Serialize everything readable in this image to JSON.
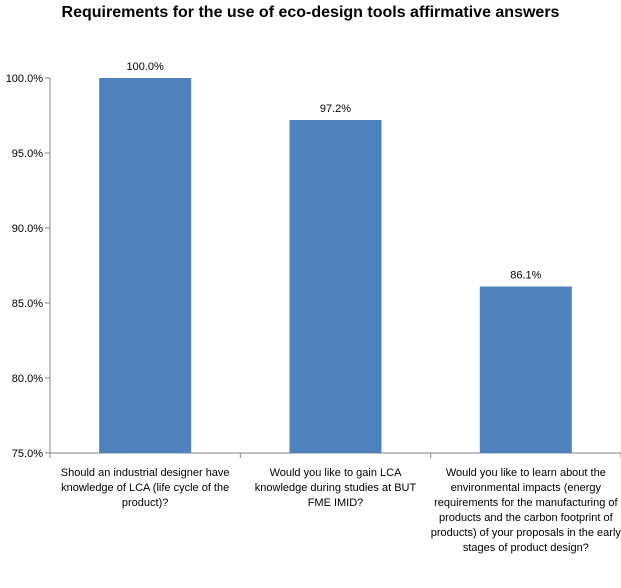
{
  "chart_data": {
    "type": "bar",
    "title": "Requirements for the use of eco-design tools affirmative answers",
    "categories": [
      "Should an industrial designer have knowledge of LCA (life cycle of the product)?",
      "Would you like to gain LCA knowledge during studies at BUT FME IMID?",
      "Would you like to learn about the environmental impacts (energy requirements for the manufacturing of products and the carbon footprint of products) of your proposals in the early stages of product design?"
    ],
    "values": [
      100.0,
      97.2,
      86.1
    ],
    "data_labels": [
      "100.0%",
      "97.2%",
      "86.1%"
    ],
    "yticks": [
      75.0,
      80.0,
      85.0,
      90.0,
      95.0,
      100.0
    ],
    "ytick_labels": [
      "75.0%",
      "80.0%",
      "85.0%",
      "90.0%",
      "95.0%",
      "100.0%"
    ],
    "ylim": [
      75,
      100
    ],
    "xlabel": "",
    "ylabel": "",
    "grid": false,
    "legend": "none",
    "bar_color": "#4F81BD"
  }
}
